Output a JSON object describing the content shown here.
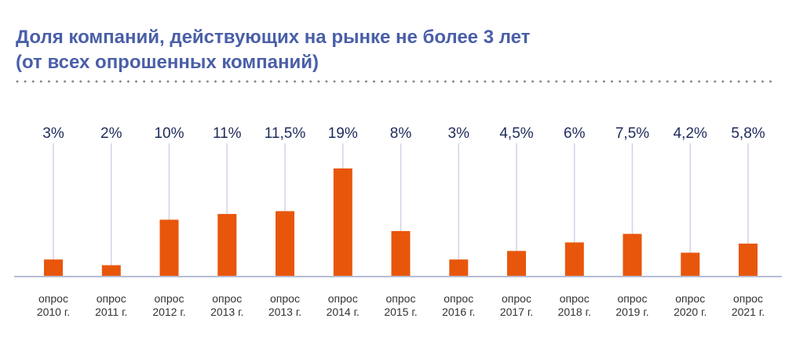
{
  "header": {
    "title_line1": "Доля компаний, действующих на рынке не более 3 лет",
    "title_line2": "(от всех опрошенных компаний)"
  },
  "chart_data": {
    "type": "bar",
    "title": "Доля компаний, действующих на рынке не более 3 лет (от всех опрошенных компаний)",
    "categories": [
      "опрос 2010 г.",
      "опрос 2011 г.",
      "опрос 2012 г.",
      "опрос 2013 г.",
      "опрос 2013 г.",
      "опрос 2014 г.",
      "опрос 2015 г.",
      "опрос 2016 г.",
      "опрос 2017 г.",
      "опрос 2018 г.",
      "опрос 2019 г.",
      "опрос 2020 г.",
      "опрос 2021 г."
    ],
    "category_lines": [
      [
        "опрос",
        "2010 г."
      ],
      [
        "опрос",
        "2011 г."
      ],
      [
        "опрос",
        "2012 г."
      ],
      [
        "опрос",
        "2013 г."
      ],
      [
        "опрос",
        "2013 г."
      ],
      [
        "опрос",
        "2014 г."
      ],
      [
        "опрос",
        "2015 г."
      ],
      [
        "опрос",
        "2016 г."
      ],
      [
        "опрос",
        "2017 г."
      ],
      [
        "опрос",
        "2018 г."
      ],
      [
        "опрос",
        "2019 г."
      ],
      [
        "опрос",
        "2020 г."
      ],
      [
        "опрос",
        "2021 г."
      ]
    ],
    "values": [
      3,
      2,
      10,
      11,
      11.5,
      19,
      8,
      3,
      4.5,
      6,
      7.5,
      4.2,
      5.8
    ],
    "value_labels": [
      "3%",
      "2%",
      "10%",
      "11%",
      "11,5%",
      "19%",
      "8%",
      "3%",
      "4,5%",
      "6%",
      "7,5%",
      "4,2%",
      "5,8%"
    ],
    "ylim": [
      0,
      19
    ],
    "colors": {
      "bar": "#e8560b",
      "title": "#4a5fa8",
      "value_label": "#1e2a5a",
      "guide_line": "#cfd4e6",
      "baseline": "#b8bdd4",
      "dots": "#8c8c8c",
      "category_label": "#333333"
    }
  }
}
